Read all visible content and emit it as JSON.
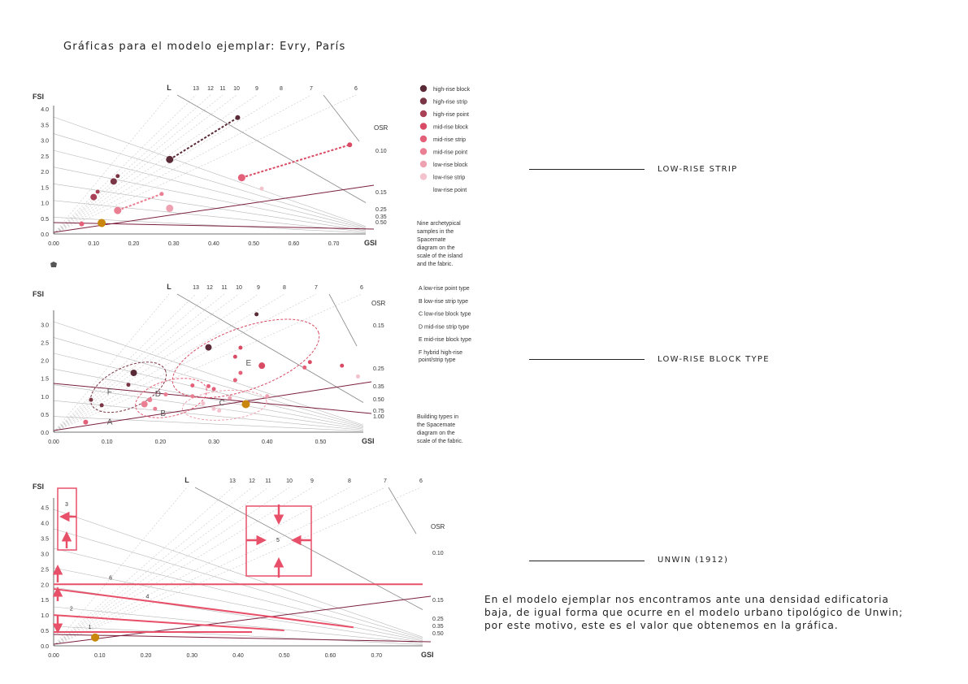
{
  "title": "Gráficas para el modelo ejemplar: Evry, París",
  "annotations": [
    {
      "label": "LOW-RISE STRIP"
    },
    {
      "label": "LOW-RISE BLOCK TYPE"
    },
    {
      "label": "UNWIN (1912)"
    }
  ],
  "paragraph": [
    "En el modelo ejemplar nos encontramos ante una densidad edificatoria",
    "baja, de igual forma que ocurre en el modelo urbano tipológico de Unwin;",
    "por este motivo, este es el valor que obtenemos en la gráfica."
  ],
  "colors": {
    "highlight": "#c8860d",
    "line_main": "#7a1f3d",
    "pink": "#e8506a",
    "grid": "#c8c8c8"
  },
  "chart_data": [
    {
      "type": "scatter",
      "title": "",
      "xlabel": "GSI",
      "ylabel": "FSI",
      "xlim": [
        0,
        0.78
      ],
      "ylim": [
        0,
        4.0
      ],
      "x_ticks": [
        "0.00",
        "0.10",
        "0.20",
        "0.30",
        "0.40",
        "0.50",
        "0.60",
        "0.70"
      ],
      "y_ticks": [
        "0.0",
        "0.5",
        "1.0",
        "1.5",
        "2.0",
        "2.5",
        "3.0",
        "3.5",
        "4.0"
      ],
      "l_labels": [
        "L",
        "13",
        "12",
        "11",
        "10",
        "9",
        "8",
        "7",
        "6"
      ],
      "osr_title": "OSR",
      "osr_labels": [
        "0.10",
        "0.15",
        "0.25",
        "0.35",
        "0.50"
      ],
      "legend": [
        {
          "name": "high-rise block",
          "color": "#5a2a36"
        },
        {
          "name": "high-rise strip",
          "color": "#7a3644"
        },
        {
          "name": "high-rise point",
          "color": "#a94257"
        },
        {
          "name": "mid-rise block",
          "color": "#d94b65"
        },
        {
          "name": "mid-rise strip",
          "color": "#e45f78"
        },
        {
          "name": "mid-rise point",
          "color": "#ea7e92"
        },
        {
          "name": "low-rise block",
          "color": "#eea2b1"
        },
        {
          "name": "low-rise strip",
          "color": "#f3c2cc"
        },
        {
          "name": "low-rise point",
          "color": "#ffffff"
        }
      ],
      "caption": [
        "Nine archetypical",
        "samples in the",
        "Spacemate",
        "diagram on the",
        "scale of the island",
        "and the fabric."
      ],
      "points": [
        {
          "x": 0.46,
          "y": 3.72,
          "r": 3,
          "c": "#5a2a36"
        },
        {
          "x": 0.29,
          "y": 2.38,
          "r": 4.5,
          "c": "#5a2a36"
        },
        {
          "x": 0.74,
          "y": 2.85,
          "r": 3,
          "c": "#d94b65"
        },
        {
          "x": 0.47,
          "y": 1.8,
          "r": 4.5,
          "c": "#e45f78"
        },
        {
          "x": 0.16,
          "y": 1.85,
          "r": 2.5,
          "c": "#7a3644"
        },
        {
          "x": 0.15,
          "y": 1.68,
          "r": 4,
          "c": "#7a3644"
        },
        {
          "x": 0.11,
          "y": 1.35,
          "r": 2.5,
          "c": "#a94257"
        },
        {
          "x": 0.1,
          "y": 1.18,
          "r": 4,
          "c": "#a94257"
        },
        {
          "x": 0.27,
          "y": 1.28,
          "r": 2.5,
          "c": "#ea7e92"
        },
        {
          "x": 0.52,
          "y": 1.45,
          "r": 2.5,
          "c": "#f3c2cc"
        },
        {
          "x": 0.29,
          "y": 0.82,
          "r": 4.5,
          "c": "#eea2b1"
        },
        {
          "x": 0.16,
          "y": 0.75,
          "r": 4.5,
          "c": "#ea7e92"
        },
        {
          "x": 0.07,
          "y": 0.32,
          "r": 3,
          "c": "#e45f78"
        },
        {
          "x": 0.12,
          "y": 0.35,
          "r": 5,
          "c": "#c8860d"
        }
      ],
      "dashed_trends": [
        {
          "from": [
            0.29,
            2.38
          ],
          "to": [
            0.46,
            3.72
          ],
          "color": "#5a2a36"
        },
        {
          "from": [
            0.47,
            1.8
          ],
          "to": [
            0.74,
            2.85
          ],
          "color": "#d94b65"
        },
        {
          "from": [
            0.16,
            0.75
          ],
          "to": [
            0.27,
            1.28
          ],
          "color": "#ea7e92"
        }
      ]
    },
    {
      "type": "scatter",
      "title": "",
      "xlabel": "GSI",
      "ylabel": "FSI",
      "xlim": [
        0,
        0.58
      ],
      "ylim": [
        0,
        3.3
      ],
      "x_ticks": [
        "0.00",
        "0.10",
        "0.20",
        "0.30",
        "0.40",
        "0.50"
      ],
      "y_ticks": [
        "0.0",
        "0.5",
        "1.0",
        "1.5",
        "2.0",
        "2.5",
        "3.0"
      ],
      "l_labels": [
        "L",
        "13",
        "12",
        "11",
        "10",
        "9",
        "8",
        "7",
        "6"
      ],
      "osr_title": "OSR",
      "osr_labels": [
        "0.15",
        "0.25",
        "0.35",
        "0.50",
        "0.75",
        "1.00"
      ],
      "legend": [
        {
          "name": "A  low-rise point type"
        },
        {
          "name": "B  low-rise strip type"
        },
        {
          "name": "C  low-rise block type"
        },
        {
          "name": "D  mid-rise strip type"
        },
        {
          "name": "E  mid-rise block type"
        },
        {
          "name": "F  hybrid high-rise"
        },
        {
          "name": "point/strip type"
        }
      ],
      "caption": [
        "Building types in",
        "the Spacemate",
        "diagram on the",
        "scale of the fabric."
      ],
      "group_labels": [
        {
          "text": "A",
          "x": 0.1,
          "y": 0.22
        },
        {
          "text": "B",
          "x": 0.2,
          "y": 0.45
        },
        {
          "text": "C",
          "x": 0.31,
          "y": 0.75
        },
        {
          "text": "D",
          "x": 0.19,
          "y": 1.0
        },
        {
          "text": "E",
          "x": 0.36,
          "y": 1.85
        },
        {
          "text": "F",
          "x": 0.1,
          "y": 1.05
        }
      ],
      "points": [
        {
          "x": 0.38,
          "y": 3.28,
          "r": 2.5,
          "c": "#5a2a36"
        },
        {
          "x": 0.29,
          "y": 2.36,
          "r": 4,
          "c": "#5a2a36"
        },
        {
          "x": 0.15,
          "y": 1.65,
          "r": 4,
          "c": "#5a2a36"
        },
        {
          "x": 0.14,
          "y": 1.32,
          "r": 2.5,
          "c": "#7a3644"
        },
        {
          "x": 0.07,
          "y": 0.9,
          "r": 2.5,
          "c": "#7a3644"
        },
        {
          "x": 0.09,
          "y": 0.75,
          "r": 2.5,
          "c": "#7a3644"
        },
        {
          "x": 0.35,
          "y": 2.35,
          "r": 2.5,
          "c": "#d94b65"
        },
        {
          "x": 0.34,
          "y": 2.1,
          "r": 2.5,
          "c": "#d94b65"
        },
        {
          "x": 0.39,
          "y": 1.85,
          "r": 4,
          "c": "#d94b65"
        },
        {
          "x": 0.48,
          "y": 1.95,
          "r": 2.5,
          "c": "#d94b65"
        },
        {
          "x": 0.54,
          "y": 1.85,
          "r": 2.5,
          "c": "#d94b65"
        },
        {
          "x": 0.47,
          "y": 1.8,
          "r": 2.5,
          "c": "#e45f78"
        },
        {
          "x": 0.57,
          "y": 1.55,
          "r": 2.5,
          "c": "#f3c2cc"
        },
        {
          "x": 0.35,
          "y": 1.65,
          "r": 2.5,
          "c": "#e45f78"
        },
        {
          "x": 0.34,
          "y": 1.45,
          "r": 2.5,
          "c": "#e45f78"
        },
        {
          "x": 0.26,
          "y": 1.3,
          "r": 2.5,
          "c": "#e45f78"
        },
        {
          "x": 0.29,
          "y": 1.28,
          "r": 2.5,
          "c": "#e45f78"
        },
        {
          "x": 0.3,
          "y": 1.2,
          "r": 2.5,
          "c": "#e45f78"
        },
        {
          "x": 0.26,
          "y": 1.0,
          "r": 2.5,
          "c": "#ea7e92"
        },
        {
          "x": 0.21,
          "y": 1.05,
          "r": 2.5,
          "c": "#ea7e92"
        },
        {
          "x": 0.18,
          "y": 0.9,
          "r": 3,
          "c": "#ea7e92"
        },
        {
          "x": 0.17,
          "y": 0.78,
          "r": 4,
          "c": "#ea7e92"
        },
        {
          "x": 0.19,
          "y": 0.65,
          "r": 2.5,
          "c": "#ea7e92"
        },
        {
          "x": 0.33,
          "y": 0.95,
          "r": 2.5,
          "c": "#eea2b1"
        },
        {
          "x": 0.4,
          "y": 1.0,
          "r": 2.5,
          "c": "#eea2b1"
        },
        {
          "x": 0.28,
          "y": 0.8,
          "r": 2.5,
          "c": "#f3c2cc"
        },
        {
          "x": 0.3,
          "y": 0.65,
          "r": 2.5,
          "c": "#f3c2cc"
        },
        {
          "x": 0.31,
          "y": 0.6,
          "r": 2.5,
          "c": "#f3c2cc"
        },
        {
          "x": 0.06,
          "y": 0.28,
          "r": 3,
          "c": "#e45f78"
        },
        {
          "x": 0.36,
          "y": 0.78,
          "r": 5,
          "c": "#c8860d"
        }
      ]
    },
    {
      "type": "scatter",
      "title": "",
      "xlabel": "GSI",
      "ylabel": "FSI",
      "xlim": [
        0,
        0.8
      ],
      "ylim": [
        0,
        4.7
      ],
      "x_ticks": [
        "0.00",
        "0.10",
        "0.20",
        "0.30",
        "0.40",
        "0.50",
        "0.60",
        "0.70"
      ],
      "y_ticks": [
        "0.0",
        "0.5",
        "1.0",
        "1.5",
        "2.0",
        "2.5",
        "3.0",
        "3.5",
        "4.0",
        "4.5"
      ],
      "l_labels": [
        "L",
        "13",
        "12",
        "11",
        "10",
        "9",
        "8",
        "7",
        "6"
      ],
      "osr_title": "OSR",
      "osr_labels": [
        "0.10",
        "0.15",
        "0.25",
        "0.35",
        "0.50"
      ],
      "unwin_lines": [
        {
          "label": "6",
          "y": 2.0,
          "x_end": 0.8
        },
        {
          "label": "4",
          "y_start": 1.85,
          "y_end": 0.6,
          "x_end": 0.65
        },
        {
          "label": "2",
          "y_start": 1.0,
          "y_end": 0.5,
          "x_end": 0.5
        },
        {
          "label": "1",
          "y": 0.45,
          "x_end": 0.43
        }
      ],
      "box_labels": [
        "3",
        "5"
      ],
      "points": [
        {
          "x": 0.09,
          "y": 0.27,
          "r": 5,
          "c": "#c8860d"
        }
      ]
    }
  ]
}
